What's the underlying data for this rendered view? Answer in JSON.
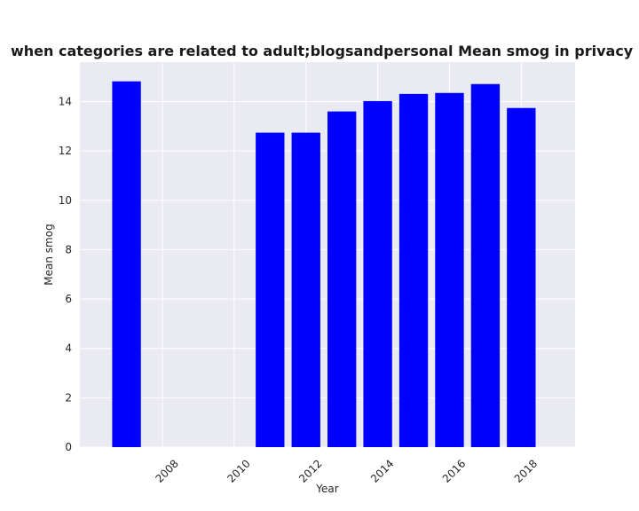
{
  "chart_data": {
    "type": "bar",
    "title": "when categories are related to adult;blogsandpersonal Mean smog in privacy policies by Year",
    "xlabel": "Year",
    "ylabel": "Mean smog",
    "x": [
      2007,
      2011,
      2012,
      2013,
      2014,
      2015,
      2016,
      2017,
      2018
    ],
    "values": [
      14.82,
      12.74,
      12.74,
      13.6,
      14.02,
      14.31,
      14.35,
      14.71,
      13.74
    ],
    "xlim": [
      2005.7,
      2019.5
    ],
    "ylim": [
      0,
      15.6
    ],
    "xticks": [
      2008,
      2010,
      2012,
      2014,
      2016,
      2018
    ],
    "yticks": [
      0,
      2,
      4,
      6,
      8,
      10,
      12,
      14
    ],
    "grid": true,
    "colors": {
      "bar": "#0000ff",
      "plot_background": "#eaeaf2",
      "grid": "#ffffff"
    }
  }
}
